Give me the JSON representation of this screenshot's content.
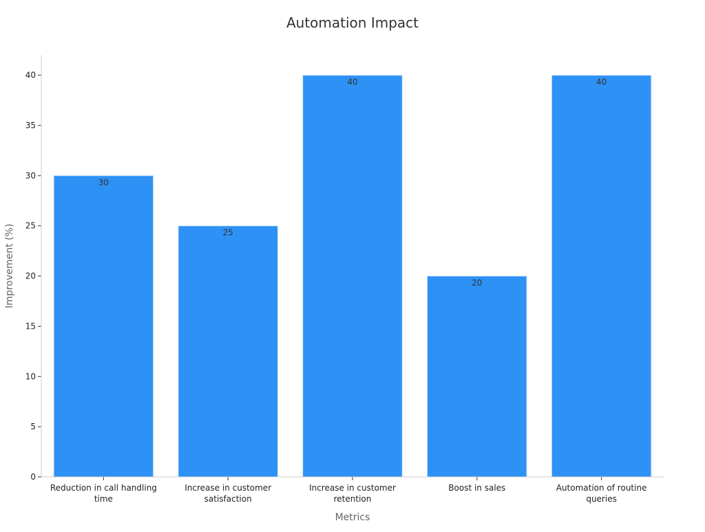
{
  "chart_data": {
    "type": "bar",
    "title": "Automation Impact",
    "xlabel": "Metrics",
    "ylabel": "Improvement (%)",
    "categories": [
      [
        "Reduction in call handling",
        "time"
      ],
      [
        "Increase in customer",
        "satisfaction"
      ],
      [
        "Increase in customer",
        "retention"
      ],
      [
        "Boost in sales"
      ],
      [
        "Automation of routine",
        "queries"
      ]
    ],
    "values": [
      30,
      25,
      40,
      20,
      40
    ],
    "ylim": [
      0,
      42
    ],
    "yticks": [
      0,
      5,
      10,
      15,
      20,
      25,
      30,
      35,
      40
    ],
    "grid": false,
    "legend": "none",
    "colors": {
      "bar": "#2e91f5",
      "bar_edge": "#d9e8fb"
    }
  }
}
